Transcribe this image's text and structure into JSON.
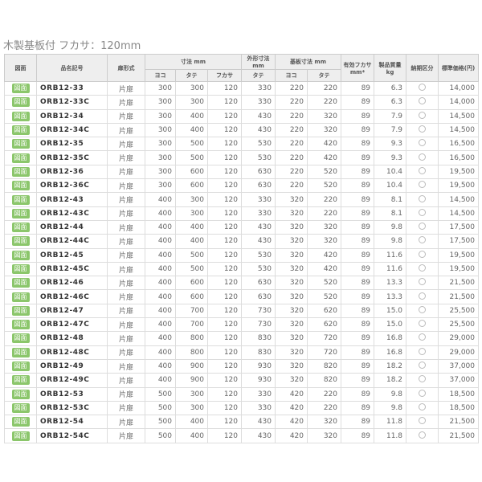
{
  "title": "木製基板付 フカサ：120mm",
  "headers": {
    "drawing": "図面",
    "model": "品名記号",
    "door": "扉形式",
    "dims": "寸法 mm",
    "w": "ヨコ",
    "h": "タテ",
    "d": "フカサ",
    "outer": "外形寸法 mm",
    "outer_h": "タテ",
    "board": "基板寸法 mm",
    "board_w": "ヨコ",
    "board_h": "タテ",
    "eff": "有効フカサ mm*",
    "mass": "製品質量 kg",
    "delivery": "納期区分",
    "price": "標準価格(円)"
  },
  "button_label": "図面",
  "accent": "#8bc66b",
  "rows": [
    [
      "ORB12-33",
      "片扉",
      "300",
      "300",
      "120",
      "330",
      "220",
      "220",
      "89",
      "6.3",
      "14,000"
    ],
    [
      "ORB12-33C",
      "片扉",
      "300",
      "300",
      "120",
      "330",
      "220",
      "220",
      "89",
      "6.3",
      "14,000"
    ],
    [
      "ORB12-34",
      "片扉",
      "300",
      "400",
      "120",
      "430",
      "220",
      "320",
      "89",
      "7.9",
      "14,500"
    ],
    [
      "ORB12-34C",
      "片扉",
      "300",
      "400",
      "120",
      "430",
      "220",
      "320",
      "89",
      "7.9",
      "14,500"
    ],
    [
      "ORB12-35",
      "片扉",
      "300",
      "500",
      "120",
      "530",
      "220",
      "420",
      "89",
      "9.3",
      "16,500"
    ],
    [
      "ORB12-35C",
      "片扉",
      "300",
      "500",
      "120",
      "530",
      "220",
      "420",
      "89",
      "9.3",
      "16,500"
    ],
    [
      "ORB12-36",
      "片扉",
      "300",
      "600",
      "120",
      "630",
      "220",
      "520",
      "89",
      "10.4",
      "19,500"
    ],
    [
      "ORB12-36C",
      "片扉",
      "300",
      "600",
      "120",
      "630",
      "220",
      "520",
      "89",
      "10.4",
      "19,500"
    ],
    [
      "ORB12-43",
      "片扉",
      "400",
      "300",
      "120",
      "330",
      "320",
      "220",
      "89",
      "8.1",
      "14,500"
    ],
    [
      "ORB12-43C",
      "片扉",
      "400",
      "300",
      "120",
      "330",
      "320",
      "220",
      "89",
      "8.1",
      "14,500"
    ],
    [
      "ORB12-44",
      "片扉",
      "400",
      "400",
      "120",
      "430",
      "320",
      "320",
      "89",
      "9.8",
      "17,500"
    ],
    [
      "ORB12-44C",
      "片扉",
      "400",
      "400",
      "120",
      "430",
      "320",
      "320",
      "89",
      "9.8",
      "17,500"
    ],
    [
      "ORB12-45",
      "片扉",
      "400",
      "500",
      "120",
      "530",
      "320",
      "420",
      "89",
      "11.6",
      "19,500"
    ],
    [
      "ORB12-45C",
      "片扉",
      "400",
      "500",
      "120",
      "530",
      "320",
      "420",
      "89",
      "11.6",
      "19,500"
    ],
    [
      "ORB12-46",
      "片扉",
      "400",
      "600",
      "120",
      "630",
      "320",
      "520",
      "89",
      "13.3",
      "21,500"
    ],
    [
      "ORB12-46C",
      "片扉",
      "400",
      "600",
      "120",
      "630",
      "320",
      "520",
      "89",
      "13.3",
      "21,500"
    ],
    [
      "ORB12-47",
      "片扉",
      "400",
      "700",
      "120",
      "730",
      "320",
      "620",
      "89",
      "15.0",
      "25,500"
    ],
    [
      "ORB12-47C",
      "片扉",
      "400",
      "700",
      "120",
      "730",
      "320",
      "620",
      "89",
      "15.0",
      "25,500"
    ],
    [
      "ORB12-48",
      "片扉",
      "400",
      "800",
      "120",
      "830",
      "320",
      "720",
      "89",
      "16.8",
      "29,000"
    ],
    [
      "ORB12-48C",
      "片扉",
      "400",
      "800",
      "120",
      "830",
      "320",
      "720",
      "89",
      "16.8",
      "29,000"
    ],
    [
      "ORB12-49",
      "片扉",
      "400",
      "900",
      "120",
      "930",
      "320",
      "820",
      "89",
      "18.2",
      "37,000"
    ],
    [
      "ORB12-49C",
      "片扉",
      "400",
      "900",
      "120",
      "930",
      "320",
      "820",
      "89",
      "18.2",
      "37,000"
    ],
    [
      "ORB12-53",
      "片扉",
      "500",
      "300",
      "120",
      "330",
      "420",
      "220",
      "89",
      "9.8",
      "18,500"
    ],
    [
      "ORB12-53C",
      "片扉",
      "500",
      "300",
      "120",
      "330",
      "420",
      "220",
      "89",
      "9.8",
      "18,500"
    ],
    [
      "ORB12-54",
      "片扉",
      "500",
      "400",
      "120",
      "430",
      "420",
      "320",
      "89",
      "11.8",
      "21,500"
    ],
    [
      "ORB12-54C",
      "片扉",
      "500",
      "400",
      "120",
      "430",
      "420",
      "320",
      "89",
      "11.8",
      "21,500"
    ]
  ]
}
